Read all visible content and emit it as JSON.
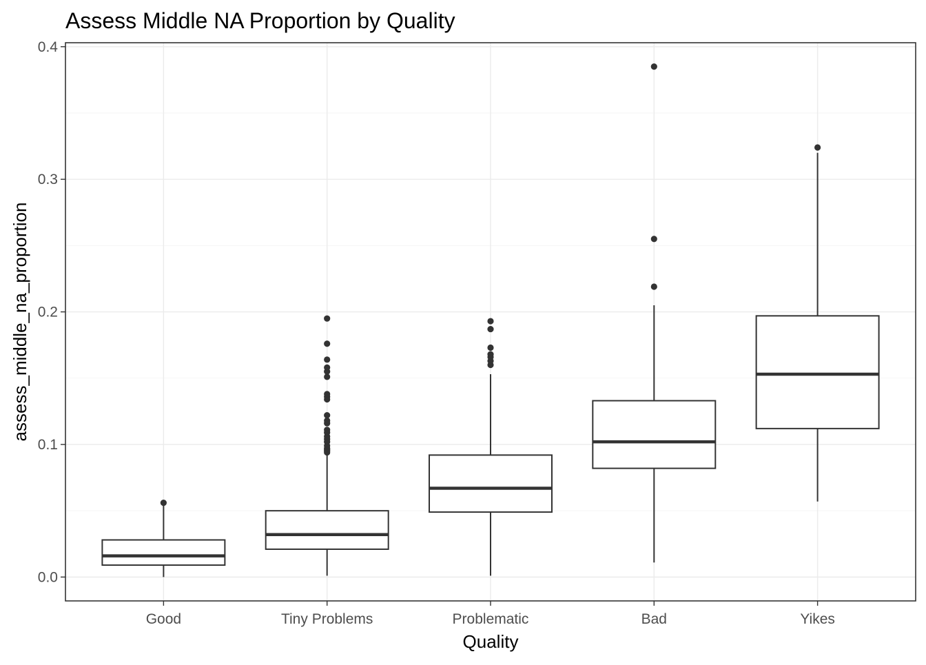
{
  "chart_data": {
    "type": "boxplot",
    "title": "Assess Middle NA Proportion by Quality",
    "xlabel": "Quality",
    "ylabel": "assess_middle_na_proportion",
    "ylim": [
      -0.018,
      0.403
    ],
    "yticks": [
      0.0,
      0.1,
      0.2,
      0.3,
      0.4
    ],
    "ytick_labels": [
      "0.0",
      "0.1",
      "0.2",
      "0.3",
      "0.4"
    ],
    "grid": true,
    "categories": [
      "Good",
      "Tiny Problems",
      "Problematic",
      "Bad",
      "Yikes"
    ],
    "boxes": [
      {
        "category": "Good",
        "whisker_low": 0.0,
        "q1": 0.009,
        "median": 0.016,
        "q3": 0.028,
        "whisker_high": 0.054,
        "outliers": [
          0.056
        ]
      },
      {
        "category": "Tiny Problems",
        "whisker_low": 0.001,
        "q1": 0.021,
        "median": 0.032,
        "q3": 0.05,
        "whisker_high": 0.093,
        "outliers": [
          0.094,
          0.095,
          0.096,
          0.097,
          0.099,
          0.102,
          0.104,
          0.106,
          0.109,
          0.111,
          0.116,
          0.118,
          0.122,
          0.134,
          0.136,
          0.138,
          0.151,
          0.155,
          0.158,
          0.164,
          0.176,
          0.195
        ]
      },
      {
        "category": "Problematic",
        "whisker_low": 0.001,
        "q1": 0.049,
        "median": 0.067,
        "q3": 0.092,
        "whisker_high": 0.153,
        "outliers": [
          0.16,
          0.163,
          0.166,
          0.168,
          0.173,
          0.187,
          0.193
        ]
      },
      {
        "category": "Bad",
        "whisker_low": 0.011,
        "q1": 0.082,
        "median": 0.102,
        "q3": 0.133,
        "whisker_high": 0.205,
        "outliers": [
          0.219,
          0.255,
          0.385
        ]
      },
      {
        "category": "Yikes",
        "whisker_low": 0.057,
        "q1": 0.112,
        "median": 0.153,
        "q3": 0.197,
        "whisker_high": 0.32,
        "outliers": [
          0.324
        ]
      }
    ]
  }
}
